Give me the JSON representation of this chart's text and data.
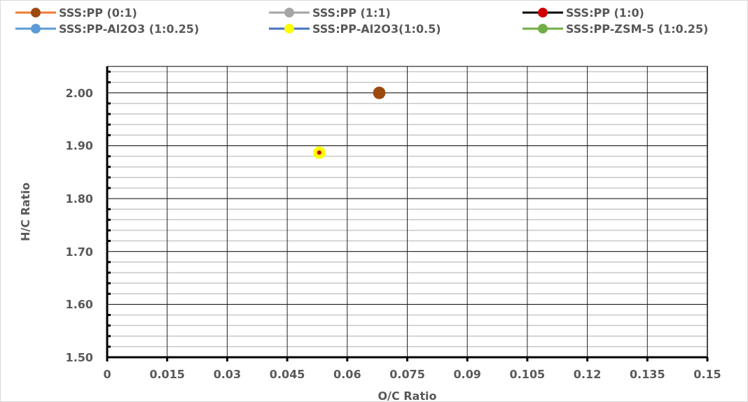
{
  "chart_data": {
    "type": "scatter",
    "xlabel": "O/C Ratio",
    "ylabel": "H/C Ratio",
    "xlim": [
      0,
      0.15
    ],
    "xticks": [
      0,
      0.015,
      0.03,
      0.045,
      0.06,
      0.075,
      0.09,
      0.105,
      0.12,
      0.135,
      0.15
    ],
    "ylim": [
      1.5,
      2.05
    ],
    "yticks": [
      {
        "value": 1.5,
        "label": "1.50"
      },
      {
        "value": 1.6,
        "label": "1.60"
      },
      {
        "value": 1.7,
        "label": "1.70"
      },
      {
        "value": 1.8,
        "label": "1.80"
      },
      {
        "value": 1.9,
        "label": "1.90"
      },
      {
        "value": 2.0,
        "label": "2.00"
      }
    ],
    "x": [
      0.053,
      0.068
    ],
    "grid": true,
    "legend": "top",
    "marker": "circle",
    "series": [
      {
        "name": "SSS:PP (0:1)",
        "color": "#ed7d31",
        "colors": [
          null,
          "#9c4a10"
        ],
        "values": [
          null,
          2.0
        ]
      },
      {
        "name": "SSS:PP (1:1)",
        "color": "#a5a5a5",
        "values": [
          null,
          null
        ]
      },
      {
        "name": "SSS:PP (1:0)",
        "color": "#000000",
        "colors": [
          "#d00000",
          null
        ],
        "values": [
          1.887,
          null
        ]
      },
      {
        "name": "SSS:PP-Al2O3 (1:0.25)",
        "color": "#5b9bd5",
        "values": [
          null,
          null
        ]
      },
      {
        "name": "SSS:PP-Al2O3(1:0.5)",
        "color": "#4472c4",
        "colors": [
          "#ffff00",
          null
        ],
        "values": [
          1.887,
          null
        ]
      },
      {
        "name": "SSS:PP-ZSM-5 (1:0.25)",
        "color": "#70ad47",
        "values": [
          null,
          null
        ]
      }
    ]
  }
}
